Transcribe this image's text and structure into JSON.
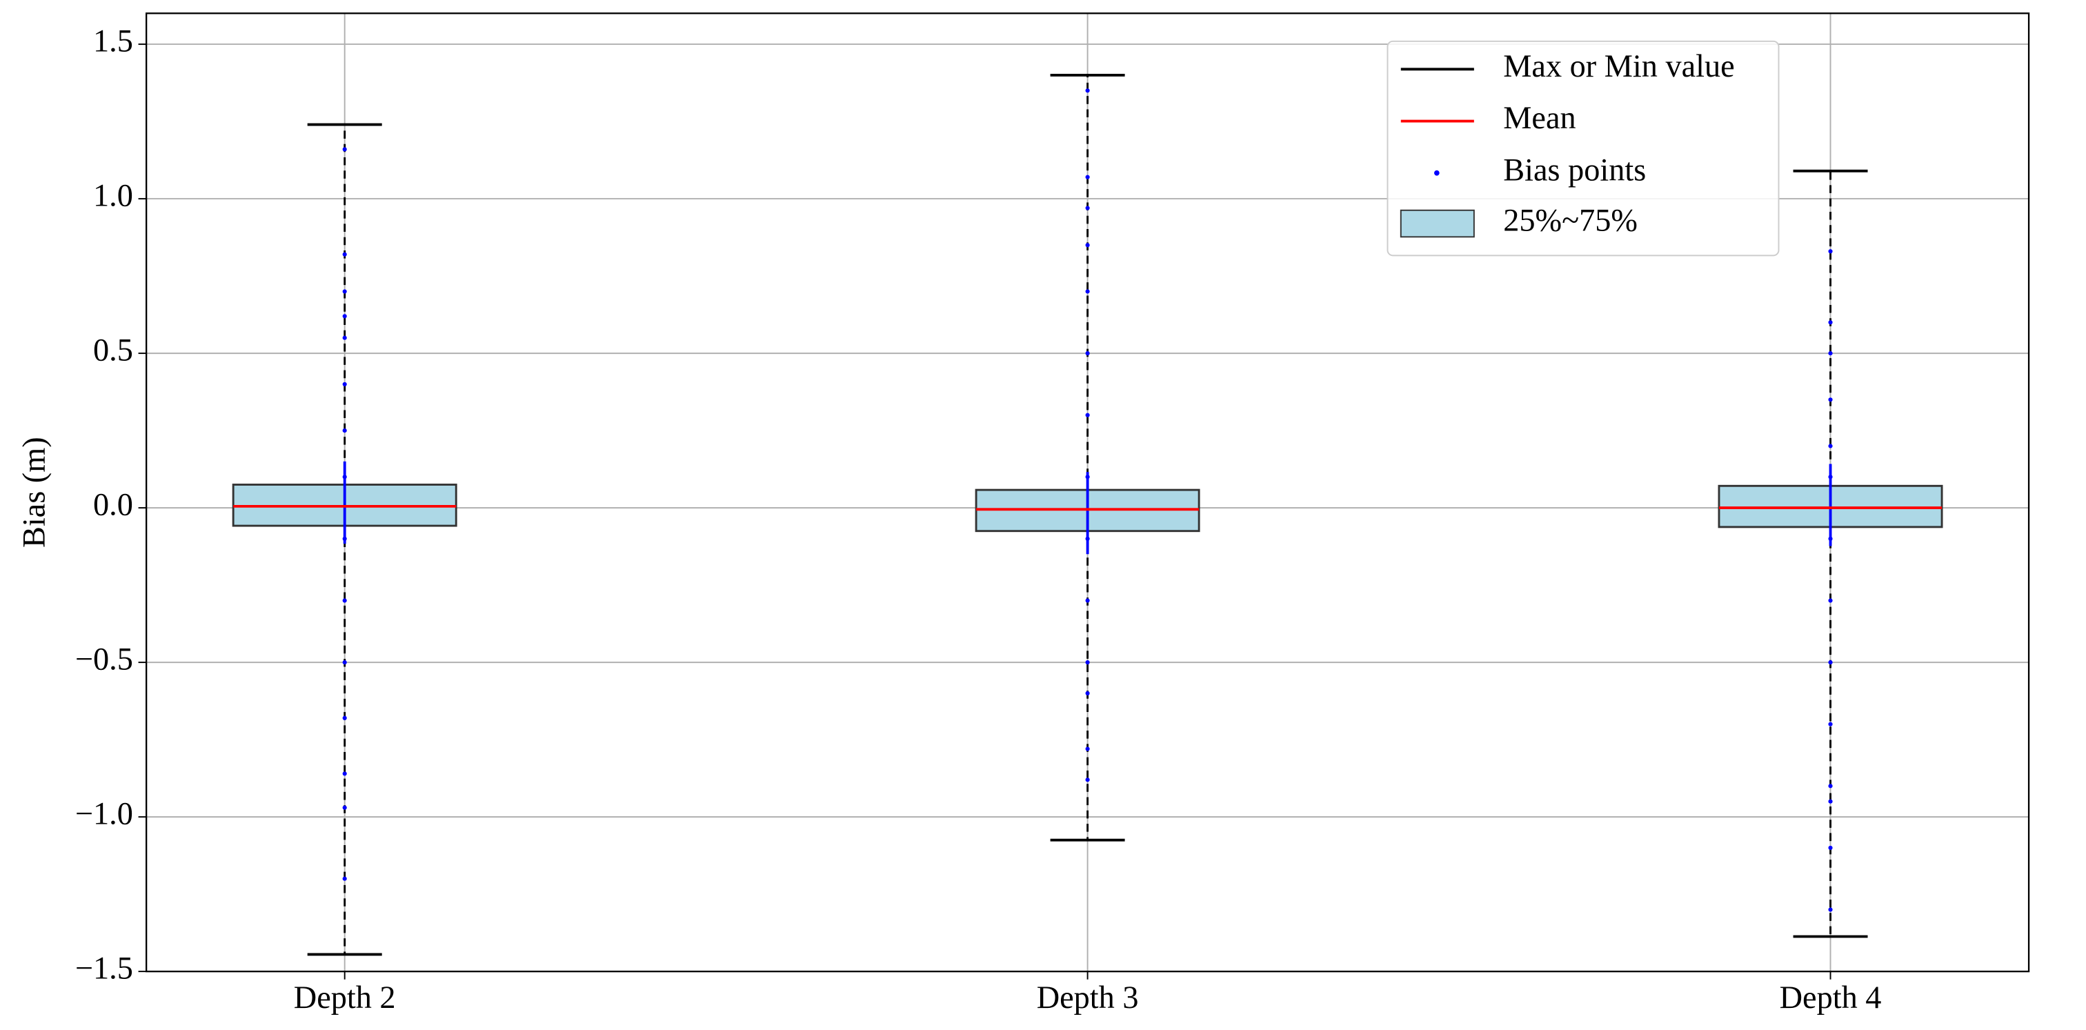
{
  "chart_data": {
    "type": "box",
    "y_label": "Bias (m)",
    "categories": [
      "Depth 2",
      "Depth 3",
      "Depth 4"
    ],
    "boxes": [
      {
        "max": 1.24,
        "q3": 0.075,
        "mean": 0.005,
        "q1": -0.058,
        "min": -1.445,
        "points": [
          1.16,
          0.82,
          0.7,
          0.62,
          0.55,
          0.4,
          0.25,
          0.1,
          -0.1,
          -0.3,
          -0.5,
          -0.68,
          -0.86,
          -0.97,
          -1.2
        ]
      },
      {
        "max": 1.4,
        "q3": 0.058,
        "mean": -0.005,
        "q1": -0.075,
        "min": -1.075,
        "points": [
          1.35,
          1.07,
          0.97,
          0.85,
          0.7,
          0.5,
          0.3,
          0.1,
          -0.1,
          -0.3,
          -0.5,
          -0.6,
          -0.78,
          -0.88
        ]
      },
      {
        "max": 1.09,
        "q3": 0.071,
        "mean": 0.0,
        "q1": -0.062,
        "min": -1.387,
        "points": [
          0.83,
          0.6,
          0.5,
          0.35,
          0.2,
          0.1,
          -0.1,
          -0.3,
          -0.5,
          -0.7,
          -0.9,
          -0.95,
          -1.1,
          -1.3
        ]
      }
    ],
    "ylim": [
      -1.5,
      1.6
    ],
    "yticks": [
      {
        "value": -1.5,
        "label": "−1.5"
      },
      {
        "value": -1.0,
        "label": "−1.0"
      },
      {
        "value": -0.5,
        "label": "−0.5"
      },
      {
        "value": 0,
        "label": "0.0"
      },
      0.5,
      {
        "value": 1.0,
        "label": "1.0"
      },
      1.5
    ],
    "grid": true,
    "legend_position": "upper right",
    "whisker_label": "Max or Min value",
    "whisker_color": "#000000",
    "mean_label": "Mean",
    "mean_color": "#ff0000",
    "points_label": "Bias points",
    "points_color": "#0000ff",
    "box_label": "25%~75%",
    "box_color": "#add8e6"
  }
}
